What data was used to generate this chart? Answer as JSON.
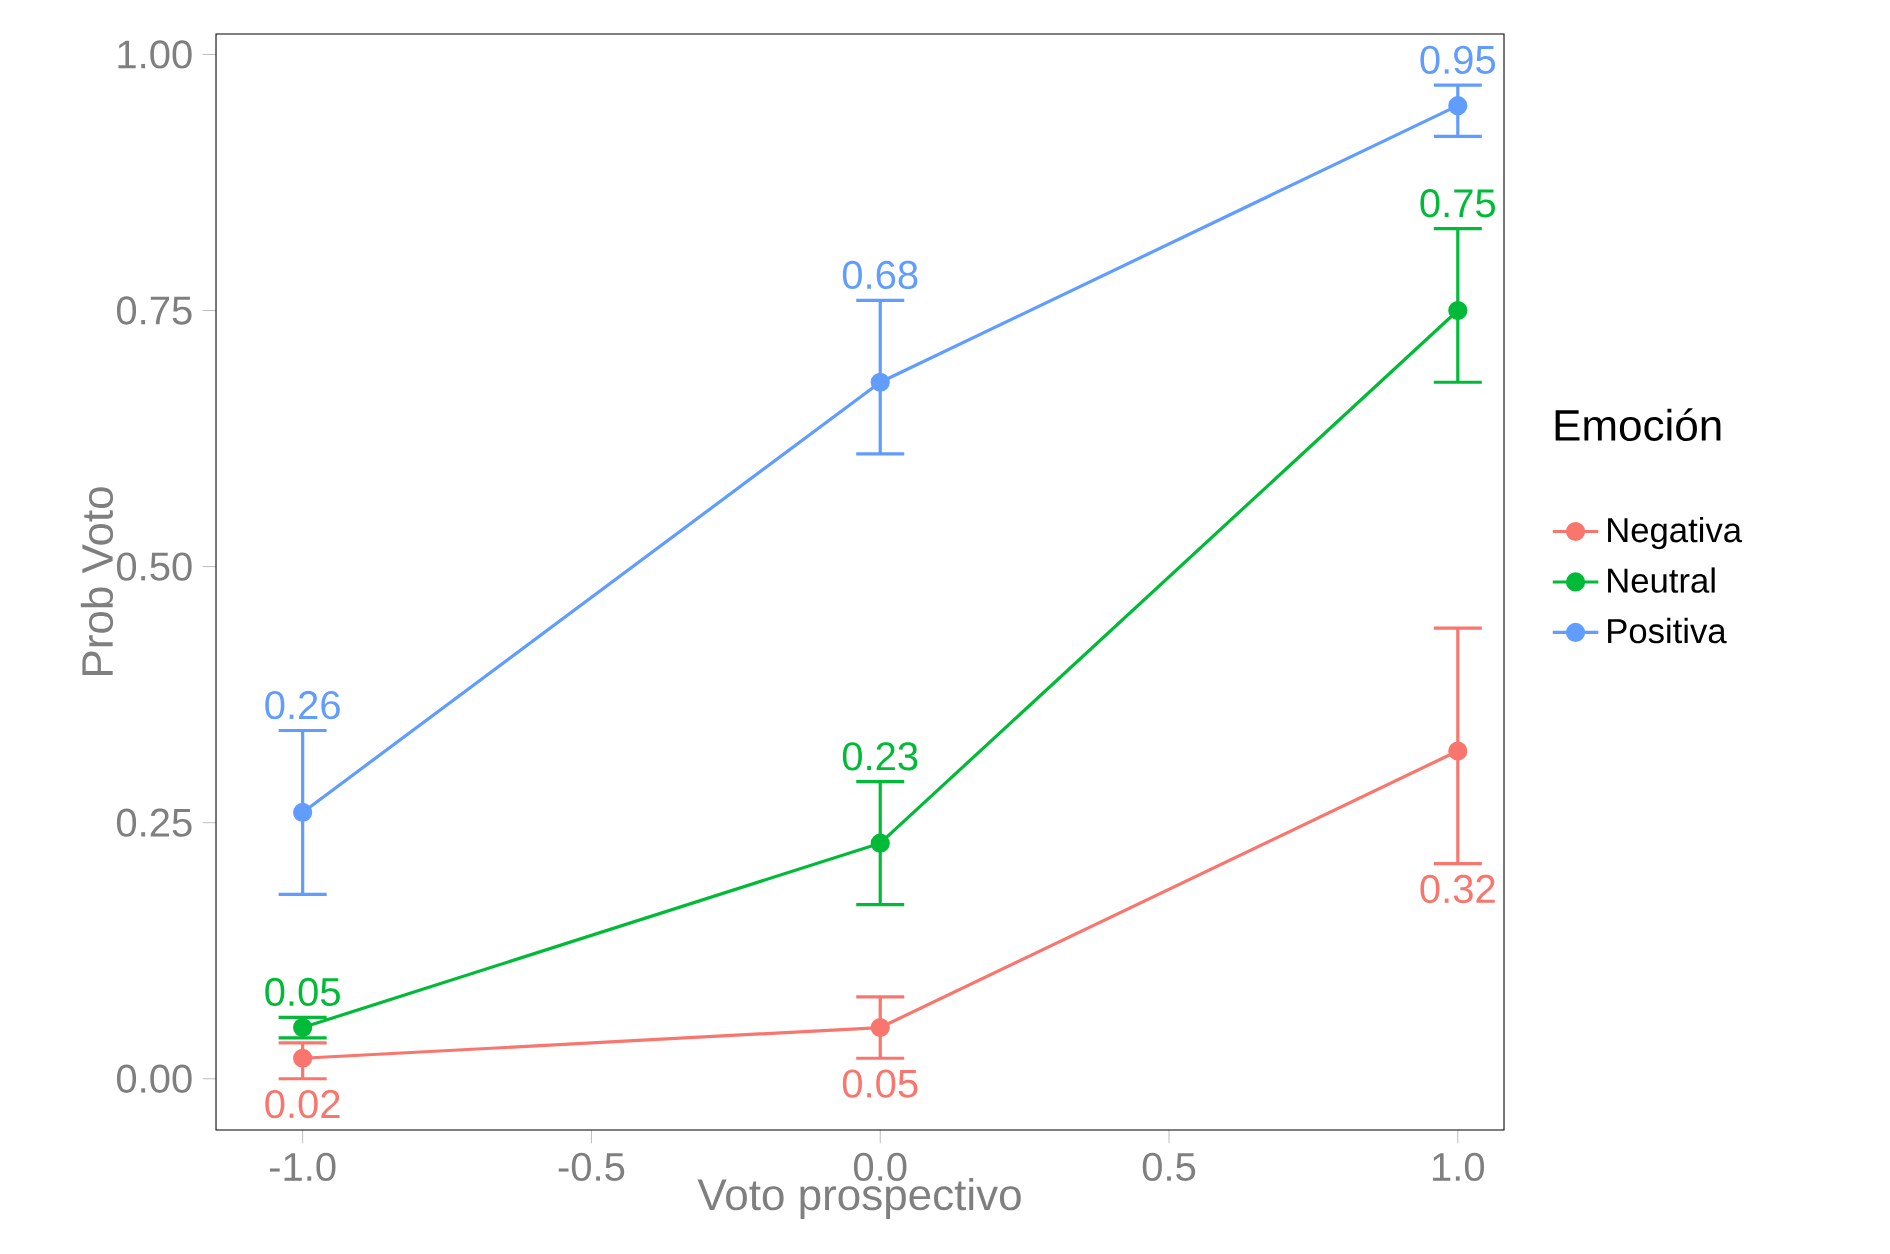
{
  "chart_data": {
    "type": "line",
    "xlabel": "Voto prospectivo",
    "ylabel": "Prob Voto",
    "legend_title": "Emoción",
    "x": [
      -1,
      0,
      1
    ],
    "series": [
      {
        "name": "Negativa",
        "color": "#f8766d",
        "values": [
          0.02,
          0.05,
          0.32
        ],
        "errors": [
          [
            0.0,
            0.035
          ],
          [
            0.02,
            0.08
          ],
          [
            0.21,
            0.44
          ]
        ]
      },
      {
        "name": "Neutral",
        "color": "#00ba38",
        "values": [
          0.05,
          0.23,
          0.75
        ],
        "errors": [
          [
            0.04,
            0.06
          ],
          [
            0.17,
            0.29
          ],
          [
            0.68,
            0.83
          ]
        ]
      },
      {
        "name": "Positiva",
        "color": "#619cff",
        "values": [
          0.26,
          0.68,
          0.95
        ],
        "errors": [
          [
            0.18,
            0.34
          ],
          [
            0.61,
            0.76
          ],
          [
            0.92,
            0.97
          ]
        ]
      }
    ],
    "xlim": [
      -1.15,
      1.08
    ],
    "ylim": [
      -0.05,
      1.02
    ],
    "xticks": [
      {
        "value": -1,
        "label": "-1.0"
      },
      {
        "value": -0.5,
        "label": "-0.5"
      },
      {
        "value": 0,
        "label": "0.0"
      },
      {
        "value": 0.5,
        "label": "0.5"
      },
      {
        "value": 1,
        "label": "1.0"
      }
    ],
    "yticks": [
      {
        "value": 0,
        "label": "0.00"
      },
      {
        "value": 0.25,
        "label": "0.25"
      },
      {
        "value": 0.5,
        "label": "0.50"
      },
      {
        "value": 0.75,
        "label": "0.75"
      },
      {
        "value": 1,
        "label": "1.00"
      }
    ],
    "grid": false,
    "legend": "right",
    "marker": "circle",
    "line_style": "solid",
    "data_labels": true
  }
}
